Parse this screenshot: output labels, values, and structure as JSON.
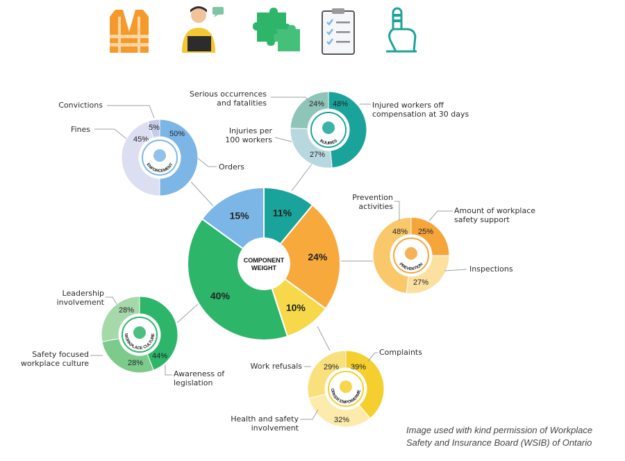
{
  "colors": {
    "teal": "#1aa39a",
    "orange": "#f8a93b",
    "yellow": "#f7d84a",
    "green": "#2db56a",
    "blue": "#7cb6e6"
  },
  "header_icons": [
    {
      "name": "safety-vest-icon",
      "color": "#f49a2c"
    },
    {
      "name": "worker-laptop-icon",
      "color": "#1aa39a"
    },
    {
      "name": "puzzle-icon",
      "color": "#2db56a"
    },
    {
      "name": "clipboard-checklist-icon",
      "color": "#7cb6e6"
    },
    {
      "name": "injured-finger-icon",
      "color": "#1aa39a"
    }
  ],
  "credit": {
    "line1": "Image used with kind permission of Workplace",
    "line2": "Safety and Insurance Board (WSIB) of Ontario"
  },
  "chart_data": [
    {
      "type": "pie",
      "title": "COMPONENT WEIGHT",
      "categories": [
        "Injuries",
        "Prevention",
        "Worker Empowerment",
        "Workplace Culture",
        "Enforcement"
      ],
      "values": [
        11,
        24,
        10,
        40,
        15
      ],
      "labels": [
        "11%",
        "24%",
        "10%",
        "40%",
        "15%"
      ],
      "colors": [
        "#1aa39a",
        "#f8a93b",
        "#f7d84a",
        "#2db56a",
        "#7cb6e6"
      ]
    },
    {
      "type": "pie",
      "title": "INJURIES",
      "categories": [
        "Injured workers off compensation at 30 days",
        "Injuries per 100 workers",
        "Serious occurrences and fatalities"
      ],
      "values": [
        48,
        27,
        24
      ],
      "labels": [
        "48%",
        "27%",
        "24%"
      ],
      "colors": [
        "#1aa39a",
        "#b9d7df",
        "#8fc4b9"
      ]
    },
    {
      "type": "pie",
      "title": "ENFORCEMENT",
      "categories": [
        "Orders",
        "Fines",
        "Convictions"
      ],
      "values": [
        50,
        45,
        5
      ],
      "labels": [
        "50%",
        "45%",
        "5%"
      ],
      "colors": [
        "#7cb6e6",
        "#dcdff2",
        "#c6cbea"
      ]
    },
    {
      "type": "pie",
      "title": "PREVENTION",
      "categories": [
        "Amount of workplace safety support",
        "Inspections",
        "Prevention activities"
      ],
      "values": [
        25,
        27,
        48
      ],
      "labels": [
        "25%",
        "27%",
        "48%"
      ],
      "colors": [
        "#f5a53a",
        "#fbe0a0",
        "#f9c86a"
      ]
    },
    {
      "type": "pie",
      "title": "WORKER EMPOWERMENT",
      "categories": [
        "Complaints",
        "Health and safety involvement",
        "Work refusals"
      ],
      "values": [
        39,
        32,
        29
      ],
      "labels": [
        "39%",
        "32%",
        "29%"
      ],
      "colors": [
        "#f4cf2e",
        "#fcebaa",
        "#f9e07c"
      ]
    },
    {
      "type": "pie",
      "title": "WORKPLACE CULTURE",
      "categories": [
        "Awareness of legislation",
        "Safety focused workplace culture",
        "Leadership involvement"
      ],
      "values": [
        44,
        28,
        28
      ],
      "labels": [
        "44%",
        "28%",
        "28%"
      ],
      "colors": [
        "#2db56a",
        "#7ccb8d",
        "#a5d9a9"
      ]
    }
  ],
  "callouts": {
    "injuries": {
      "a1": "Injured workers off",
      "a2": "compensation at 30 days",
      "b1": "Injuries per",
      "b2": "100 workers",
      "c1": "Serious occurrences",
      "c2": "and fatalities"
    },
    "enforcement": {
      "a": "Orders",
      "b": "Fines",
      "c": "Convictions"
    },
    "prevention": {
      "a1": "Amount of workplace",
      "a2": "safety support",
      "b": "Inspections",
      "c1": "Prevention",
      "c2": "activities"
    },
    "worker": {
      "a": "Complaints",
      "b1": "Health and safety",
      "b2": "involvement",
      "c": "Work refusals"
    },
    "culture": {
      "a1": "Awareness of",
      "a2": "legislation",
      "b1": "Safety focused",
      "b2": "workplace culture",
      "c1": "Leadership",
      "c2": "involvement"
    }
  }
}
